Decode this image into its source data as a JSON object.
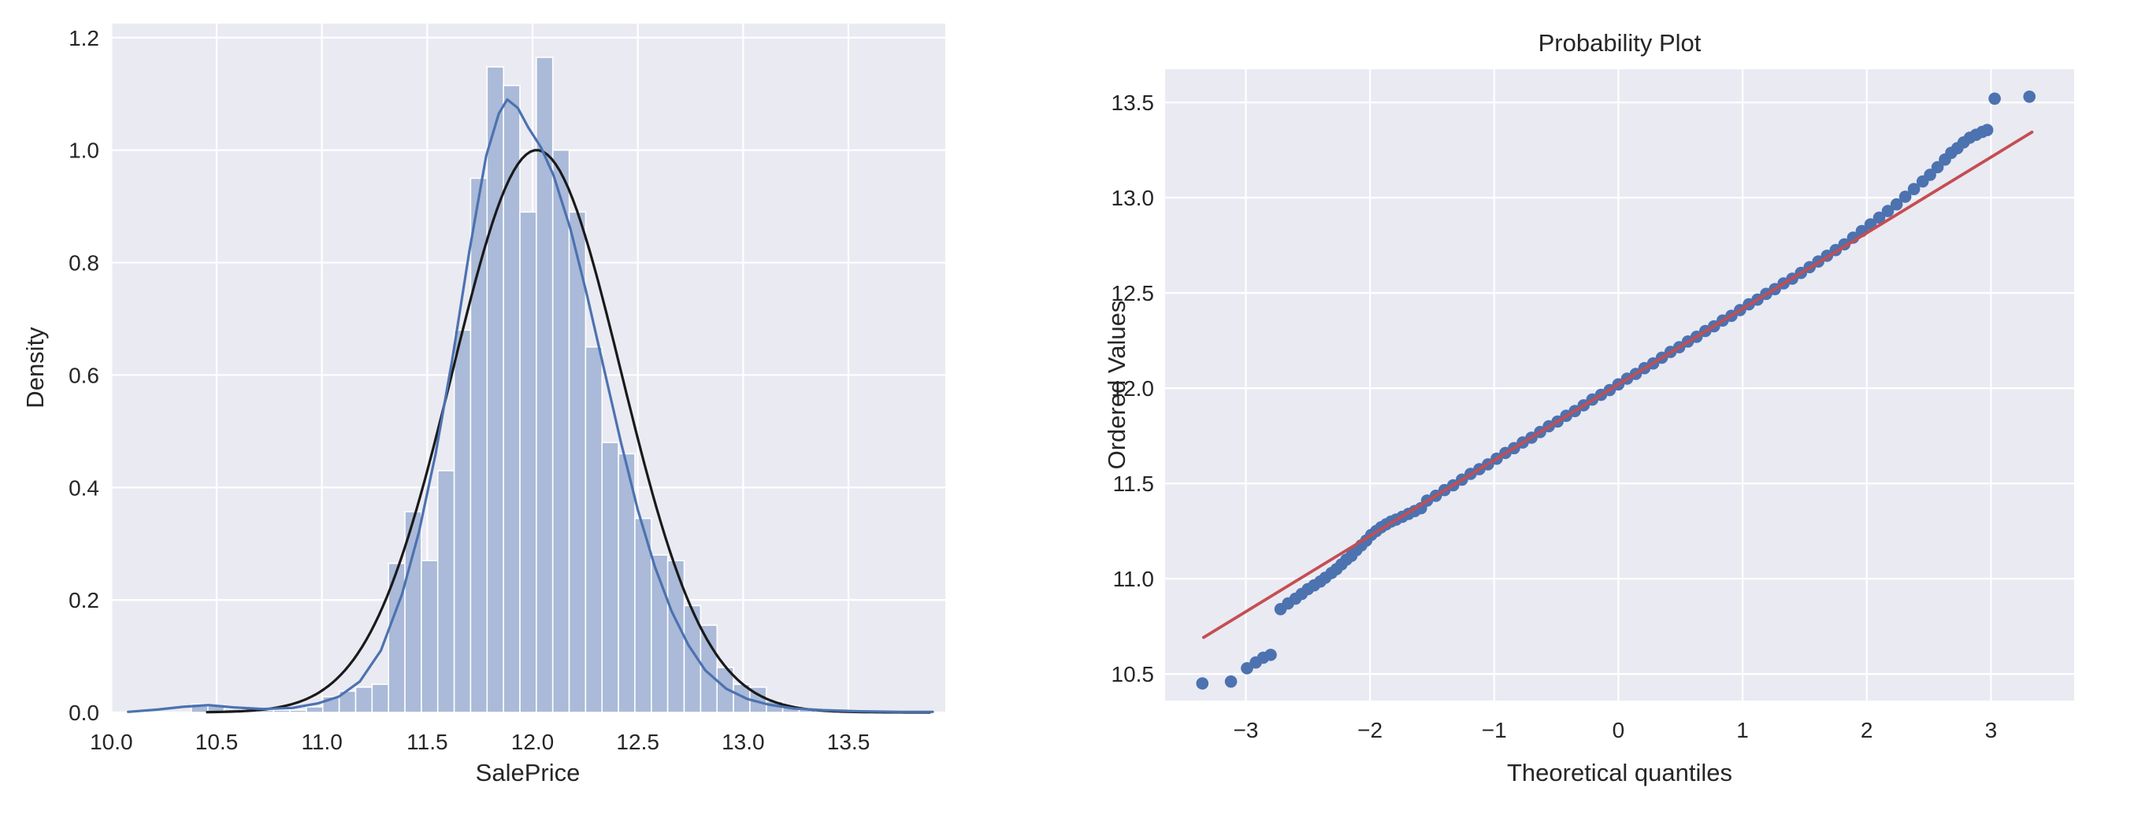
{
  "figure": {
    "background": "#ffffff",
    "panel_color": "#eaeaf2",
    "grid_color": "#ffffff",
    "text_color": "#262626"
  },
  "chart_data": [
    {
      "id": "saleprice-distribution",
      "type": "bar",
      "title": "",
      "xlabel": "SalePrice",
      "ylabel": "Density",
      "xlim": [
        9.995,
        13.96
      ],
      "ylim": [
        0,
        1.225
      ],
      "x_tick_values": [
        10.0,
        10.5,
        11.0,
        11.5,
        12.0,
        12.5,
        13.0,
        13.5
      ],
      "x_tick_labels": [
        "10.0",
        "10.5",
        "11.0",
        "11.5",
        "12.0",
        "12.5",
        "13.0",
        "13.5"
      ],
      "y_tick_values": [
        0.0,
        0.2,
        0.4,
        0.6,
        0.8,
        1.0,
        1.2
      ],
      "y_tick_labels": [
        "0.0",
        "0.2",
        "0.4",
        "0.6",
        "0.8",
        "1.0",
        "1.2"
      ],
      "grid": true,
      "histogram": {
        "bins_start": 10.38,
        "bin_width": 0.078,
        "bar_color": "#aabad8",
        "bar_edge_color": "#ffffff",
        "heights": [
          0.015,
          0.012,
          0.006,
          0.004,
          0.004,
          0.004,
          0.004,
          0.01,
          0.028,
          0.038,
          0.045,
          0.05,
          0.265,
          0.357,
          0.27,
          0.43,
          0.68,
          0.95,
          1.148,
          1.115,
          0.89,
          1.165,
          1.0,
          0.89,
          0.65,
          0.48,
          0.46,
          0.345,
          0.28,
          0.27,
          0.19,
          0.155,
          0.08,
          0.05,
          0.045,
          0.02,
          0.012,
          0.005
        ]
      },
      "kde_series": {
        "name": "kde",
        "color": "#4c72b0",
        "points": [
          [
            10.08,
            0.001
          ],
          [
            10.22,
            0.005
          ],
          [
            10.34,
            0.01
          ],
          [
            10.46,
            0.013
          ],
          [
            10.58,
            0.009
          ],
          [
            10.72,
            0.006
          ],
          [
            10.86,
            0.008
          ],
          [
            10.98,
            0.016
          ],
          [
            11.08,
            0.028
          ],
          [
            11.18,
            0.055
          ],
          [
            11.28,
            0.11
          ],
          [
            11.38,
            0.21
          ],
          [
            11.46,
            0.32
          ],
          [
            11.54,
            0.46
          ],
          [
            11.62,
            0.63
          ],
          [
            11.7,
            0.82
          ],
          [
            11.78,
            0.99
          ],
          [
            11.84,
            1.065
          ],
          [
            11.88,
            1.09
          ],
          [
            11.93,
            1.075
          ],
          [
            11.98,
            1.04
          ],
          [
            12.04,
            1.005
          ],
          [
            12.1,
            0.955
          ],
          [
            12.18,
            0.86
          ],
          [
            12.26,
            0.74
          ],
          [
            12.34,
            0.61
          ],
          [
            12.42,
            0.48
          ],
          [
            12.5,
            0.36
          ],
          [
            12.58,
            0.26
          ],
          [
            12.66,
            0.18
          ],
          [
            12.74,
            0.12
          ],
          [
            12.82,
            0.075
          ],
          [
            12.92,
            0.042
          ],
          [
            13.02,
            0.024
          ],
          [
            13.12,
            0.014
          ],
          [
            13.24,
            0.007
          ],
          [
            13.38,
            0.004
          ],
          [
            13.55,
            0.002
          ],
          [
            13.75,
            0.001
          ],
          [
            13.9,
            0.001
          ]
        ]
      },
      "normal_fit": {
        "name": "normal-fit",
        "color": "#1a1a1a",
        "mean": 12.02,
        "std": 0.4,
        "peak_density": 1.0,
        "range": [
          10.45,
          13.9
        ]
      }
    },
    {
      "id": "probability-plot",
      "type": "scatter",
      "title": "Probability Plot",
      "xlabel": "Theoretical quantiles",
      "ylabel": "Ordered Values",
      "xlim": [
        -3.65,
        3.67
      ],
      "ylim": [
        10.36,
        13.674
      ],
      "x_tick_values": [
        -3,
        -2,
        -1,
        0,
        1,
        2,
        3
      ],
      "x_tick_labels": [
        "−3",
        "−2",
        "−1",
        "0",
        "1",
        "2",
        "3"
      ],
      "y_tick_values": [
        10.5,
        11.0,
        11.5,
        12.0,
        12.5,
        13.0,
        13.5
      ],
      "y_tick_labels": [
        "10.5",
        "11.0",
        "11.5",
        "12.0",
        "12.5",
        "13.0",
        "13.5"
      ],
      "grid": true,
      "marker_color": "#4c72b0",
      "marker_radius": 7.8,
      "fit_line": {
        "name": "probplot-fit-line",
        "color": "#c44e52",
        "slope": 0.3976,
        "intercept": 12.02,
        "x_start": -3.34,
        "x_end": 3.33
      },
      "points": [
        [
          -3.35,
          10.45
        ],
        [
          -3.12,
          10.46
        ],
        [
          -2.99,
          10.53
        ],
        [
          -2.92,
          10.56
        ],
        [
          -2.86,
          10.585
        ],
        [
          -2.8,
          10.6
        ],
        [
          -2.72,
          10.84
        ],
        [
          -2.66,
          10.87
        ],
        [
          -2.6,
          10.895
        ],
        [
          -2.55,
          10.92
        ],
        [
          -2.5,
          10.945
        ],
        [
          -2.45,
          10.965
        ],
        [
          -2.4,
          10.985
        ],
        [
          -2.36,
          11.005
        ],
        [
          -2.31,
          11.03
        ],
        [
          -2.27,
          11.05
        ],
        [
          -2.23,
          11.075
        ],
        [
          -2.19,
          11.1
        ],
        [
          -2.15,
          11.12
        ],
        [
          -2.11,
          11.15
        ],
        [
          -2.07,
          11.175
        ],
        [
          -2.03,
          11.2
        ],
        [
          -1.99,
          11.23
        ],
        [
          -1.95,
          11.25
        ],
        [
          -1.91,
          11.27
        ],
        [
          -1.87,
          11.285
        ],
        [
          -1.83,
          11.3
        ],
        [
          -1.79,
          11.31
        ],
        [
          -1.74,
          11.325
        ],
        [
          -1.69,
          11.34
        ],
        [
          -1.64,
          11.355
        ],
        [
          -1.59,
          11.37
        ],
        [
          -1.54,
          11.41
        ],
        [
          -1.47,
          11.435
        ],
        [
          -1.4,
          11.465
        ],
        [
          -1.33,
          11.49
        ],
        [
          -1.26,
          11.52
        ],
        [
          -1.19,
          11.55
        ],
        [
          -1.12,
          11.575
        ],
        [
          -1.05,
          11.6
        ],
        [
          -0.98,
          11.63
        ],
        [
          -0.91,
          11.66
        ],
        [
          -0.84,
          11.685
        ],
        [
          -0.77,
          11.715
        ],
        [
          -0.7,
          11.74
        ],
        [
          -0.63,
          11.77
        ],
        [
          -0.56,
          11.8
        ],
        [
          -0.49,
          11.825
        ],
        [
          -0.42,
          11.855
        ],
        [
          -0.35,
          11.88
        ],
        [
          -0.28,
          11.91
        ],
        [
          -0.21,
          11.94
        ],
        [
          -0.14,
          11.965
        ],
        [
          -0.07,
          11.99
        ],
        [
          0.0,
          12.02
        ],
        [
          0.07,
          12.05
        ],
        [
          0.14,
          12.075
        ],
        [
          0.21,
          12.105
        ],
        [
          0.28,
          12.13
        ],
        [
          0.35,
          12.16
        ],
        [
          0.42,
          12.19
        ],
        [
          0.49,
          12.215
        ],
        [
          0.56,
          12.245
        ],
        [
          0.63,
          12.27
        ],
        [
          0.7,
          12.3
        ],
        [
          0.77,
          12.325
        ],
        [
          0.84,
          12.355
        ],
        [
          0.91,
          12.38
        ],
        [
          0.98,
          12.41
        ],
        [
          1.05,
          12.44
        ],
        [
          1.12,
          12.465
        ],
        [
          1.19,
          12.495
        ],
        [
          1.26,
          12.52
        ],
        [
          1.33,
          12.55
        ],
        [
          1.4,
          12.575
        ],
        [
          1.47,
          12.605
        ],
        [
          1.54,
          12.635
        ],
        [
          1.61,
          12.665
        ],
        [
          1.68,
          12.695
        ],
        [
          1.75,
          12.725
        ],
        [
          1.82,
          12.755
        ],
        [
          1.89,
          12.79
        ],
        [
          1.96,
          12.825
        ],
        [
          2.03,
          12.86
        ],
        [
          2.1,
          12.895
        ],
        [
          2.17,
          12.93
        ],
        [
          2.24,
          12.965
        ],
        [
          2.31,
          13.005
        ],
        [
          2.38,
          13.045
        ],
        [
          2.45,
          13.085
        ],
        [
          2.51,
          13.12
        ],
        [
          2.57,
          13.16
        ],
        [
          2.63,
          13.2
        ],
        [
          2.68,
          13.235
        ],
        [
          2.73,
          13.26
        ],
        [
          2.78,
          13.29
        ],
        [
          2.83,
          13.315
        ],
        [
          2.88,
          13.33
        ],
        [
          2.93,
          13.345
        ],
        [
          2.97,
          13.355
        ],
        [
          3.03,
          13.52
        ],
        [
          3.31,
          13.53
        ]
      ]
    }
  ]
}
